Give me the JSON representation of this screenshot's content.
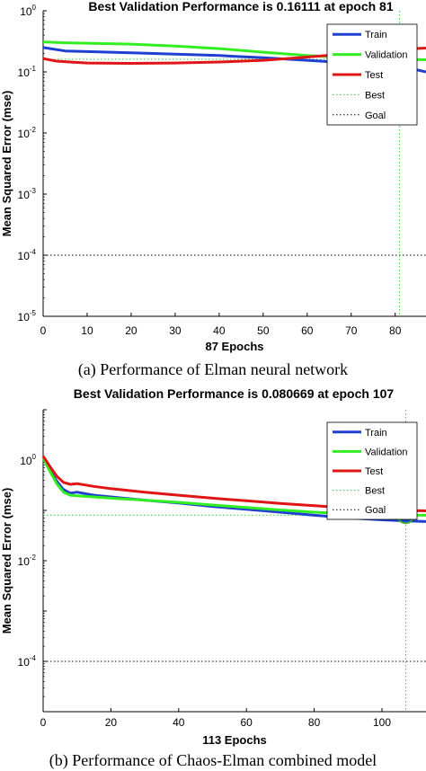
{
  "chart_data": [
    {
      "type": "line",
      "title": "Best Validation Performance is 0.16111 at epoch 81",
      "xlabel": "87 Epochs",
      "ylabel": "Mean Squared Error  (mse)",
      "caption": "(a) Performance of Elman neural network",
      "xlim": [
        0,
        87
      ],
      "ylim_exp": [
        -5,
        0
      ],
      "yscale": "log",
      "xticks": [
        0,
        10,
        20,
        30,
        40,
        50,
        60,
        70,
        80
      ],
      "yticks_exp": [
        -5,
        -4,
        -3,
        -2,
        -1,
        0
      ],
      "legend_position": "top-right",
      "series": [
        {
          "name": "Train",
          "color": "#1f3fd0",
          "style": "solid",
          "x": [
            0,
            5,
            10,
            20,
            30,
            40,
            50,
            60,
            70,
            81,
            87
          ],
          "y": [
            0.25,
            0.22,
            0.215,
            0.205,
            0.195,
            0.185,
            0.17,
            0.155,
            0.14,
            0.125,
            0.1
          ]
        },
        {
          "name": "Validation",
          "color": "#33ee22",
          "style": "solid",
          "x": [
            0,
            5,
            10,
            20,
            30,
            40,
            50,
            60,
            70,
            81,
            87
          ],
          "y": [
            0.31,
            0.3,
            0.295,
            0.285,
            0.265,
            0.24,
            0.21,
            0.185,
            0.17,
            0.161,
            0.158
          ]
        },
        {
          "name": "Test",
          "color": "#e01515",
          "style": "solid",
          "x": [
            0,
            3,
            6,
            10,
            20,
            30,
            40,
            50,
            60,
            70,
            81,
            87
          ],
          "y": [
            0.165,
            0.15,
            0.145,
            0.14,
            0.138,
            0.14,
            0.145,
            0.155,
            0.175,
            0.2,
            0.235,
            0.245
          ]
        },
        {
          "name": "Best",
          "color": "#33cc33",
          "style": "dotted",
          "kind": "best"
        },
        {
          "name": "Goal",
          "color": "#000000",
          "style": "dotted",
          "kind": "goal"
        }
      ],
      "best": {
        "epoch": 81,
        "value": 0.16111
      },
      "goal": 0.0001
    },
    {
      "type": "line",
      "title": "Best Validation Performance is 0.080669 at epoch 107",
      "xlabel": "113 Epochs",
      "ylabel": "Mean Squared Error  (mse)",
      "caption": "(b) Performance of Chaos-Elman combined model",
      "xlim": [
        0,
        113
      ],
      "ylim_exp": [
        -5,
        1
      ],
      "yscale": "log",
      "xticks": [
        0,
        20,
        40,
        60,
        80,
        100
      ],
      "yticks_exp": [
        -4,
        -2,
        0
      ],
      "legend_position": "top-right",
      "series": [
        {
          "name": "Train",
          "color": "#1f3fd0",
          "style": "solid",
          "x": [
            0,
            2,
            4,
            6,
            8,
            10,
            15,
            20,
            30,
            40,
            50,
            60,
            70,
            80,
            90,
            100,
            107,
            113
          ],
          "y": [
            1.1,
            0.62,
            0.38,
            0.26,
            0.22,
            0.23,
            0.2,
            0.185,
            0.16,
            0.14,
            0.12,
            0.105,
            0.092,
            0.08,
            0.071,
            0.065,
            0.062,
            0.06
          ]
        },
        {
          "name": "Validation",
          "color": "#33ee22",
          "style": "solid",
          "x": [
            0,
            2,
            4,
            6,
            8,
            10,
            15,
            20,
            30,
            40,
            50,
            60,
            70,
            80,
            90,
            100,
            107,
            113
          ],
          "y": [
            1.1,
            0.6,
            0.34,
            0.23,
            0.2,
            0.195,
            0.185,
            0.175,
            0.16,
            0.145,
            0.128,
            0.114,
            0.102,
            0.092,
            0.086,
            0.082,
            0.0807,
            0.08
          ]
        },
        {
          "name": "Test",
          "color": "#e01515",
          "style": "solid",
          "x": [
            0,
            2,
            4,
            6,
            8,
            10,
            15,
            20,
            30,
            40,
            50,
            60,
            70,
            80,
            90,
            100,
            107,
            113
          ],
          "y": [
            1.2,
            0.75,
            0.48,
            0.36,
            0.33,
            0.34,
            0.3,
            0.27,
            0.23,
            0.2,
            0.175,
            0.155,
            0.138,
            0.124,
            0.112,
            0.104,
            0.1,
            0.098
          ]
        },
        {
          "name": "Best",
          "color": "#33cc33",
          "style": "dotted",
          "kind": "best"
        },
        {
          "name": "Goal",
          "color": "#000000",
          "style": "dotted",
          "kind": "goal"
        }
      ],
      "best": {
        "epoch": 107,
        "value": 0.080669
      },
      "goal": 0.0001
    }
  ]
}
